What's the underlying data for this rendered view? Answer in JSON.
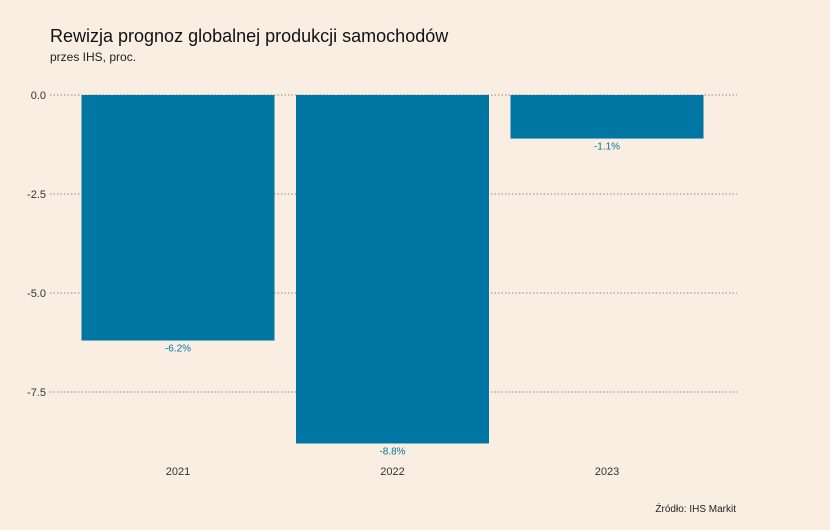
{
  "header": {
    "title": "Rewizja prognoz globalnej produkcji samochodów",
    "subtitle": "przes IHS, proc."
  },
  "footer": {
    "source": "Źródło: IHS Markit"
  },
  "colors": {
    "background": "#FAEEE2",
    "bar": "#0077A3",
    "grid": "#6b6b6b"
  },
  "chart_data": {
    "type": "bar",
    "title": "Rewizja prognoz globalnej produkcji samochodów",
    "subtitle": "przes IHS, proc.",
    "xlabel": "",
    "ylabel": "",
    "categories": [
      "2021",
      "2022",
      "2023"
    ],
    "values": [
      -6.2,
      -8.8,
      -1.1
    ],
    "data_labels": [
      "-6.2%",
      "-8.8%",
      "-1.1%"
    ],
    "y_ticks": [
      0.0,
      -2.5,
      -5.0,
      -7.5
    ],
    "y_tick_labels": [
      "0.0",
      "-2.5",
      "-5.0",
      "-7.5"
    ],
    "ylim": [
      -8.8,
      0
    ],
    "grid": "horizontal-dotted",
    "legend": "none"
  }
}
